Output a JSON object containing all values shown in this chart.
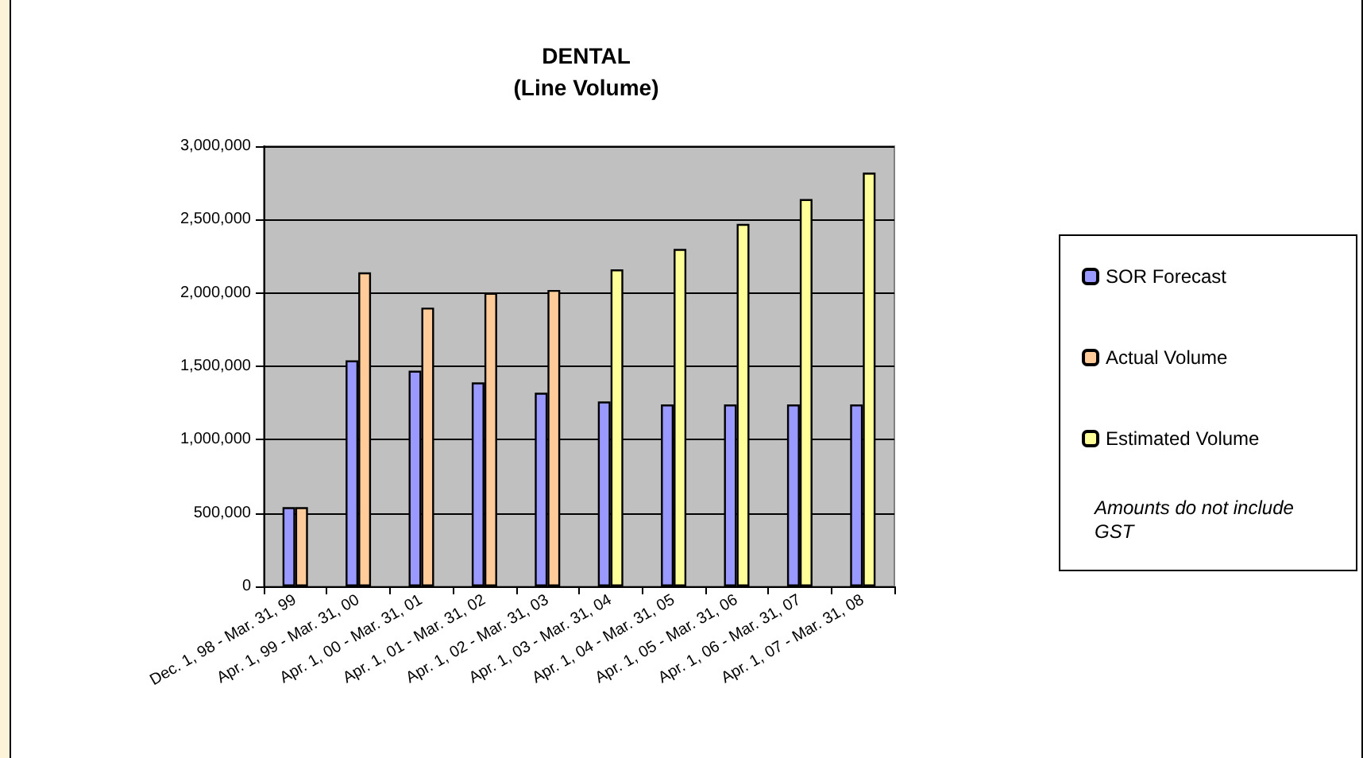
{
  "chart_data": {
    "type": "bar",
    "title": "DENTAL\n(Line Volume)",
    "categories": [
      "Dec. 1, 98 - Mar. 31, 99",
      "Apr. 1, 99 - Mar. 31, 00",
      "Apr. 1, 00 - Mar. 31, 01",
      "Apr. 1, 01 - Mar. 31, 02",
      "Apr. 1, 02 - Mar. 31, 03",
      "Apr. 1, 03 - Mar. 31, 04",
      "Apr. 1, 04 - Mar. 31, 05",
      "Apr. 1, 05 - Mar. 31, 06",
      "Apr. 1, 06 - Mar. 31, 07",
      "Apr. 1, 07 - Mar. 31, 08"
    ],
    "series": [
      {
        "name": "SOR Forecast",
        "color": "#9999ff",
        "values": [
          540000,
          1540000,
          1470000,
          1390000,
          1320000,
          1260000,
          1240000,
          1240000,
          1240000,
          1240000
        ]
      },
      {
        "name": "Actual Volume",
        "color": "#ffcc99",
        "values": [
          540000,
          2140000,
          1900000,
          2000000,
          2020000,
          null,
          null,
          null,
          null,
          null
        ]
      },
      {
        "name": "Estimated Volume",
        "color": "#ffff99",
        "values": [
          null,
          null,
          null,
          null,
          null,
          2160000,
          2300000,
          2470000,
          2640000,
          2820000
        ]
      }
    ],
    "ylim": [
      0,
      3000000
    ],
    "yticks": [
      {
        "value": 0,
        "label": "0"
      },
      {
        "value": 500000,
        "label": "500,000"
      },
      {
        "value": 1000000,
        "label": "1,000,000"
      },
      {
        "value": 1500000,
        "label": "1,500,000"
      },
      {
        "value": 2000000,
        "label": "2,000,000"
      },
      {
        "value": 2500000,
        "label": "2,500,000"
      },
      {
        "value": 3000000,
        "label": "3,000,000"
      }
    ],
    "grid": "y",
    "legend": "right",
    "annotations": [
      "Amounts do not include GST"
    ]
  }
}
